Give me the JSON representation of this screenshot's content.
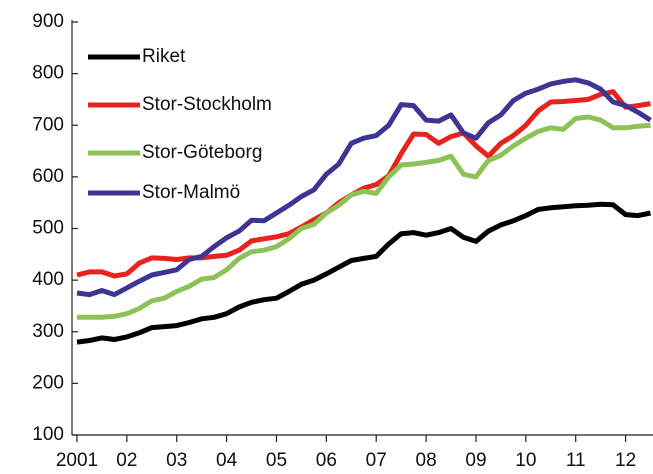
{
  "chart_data": {
    "type": "line",
    "x": [
      2001,
      2001.25,
      2001.5,
      2001.75,
      2002,
      2002.25,
      2002.5,
      2002.75,
      2003,
      2003.25,
      2003.5,
      2003.75,
      2004,
      2004.25,
      2004.5,
      2004.75,
      2005,
      2005.25,
      2005.5,
      2005.75,
      2006,
      2006.25,
      2006.5,
      2006.75,
      2007,
      2007.25,
      2007.5,
      2007.75,
      2008,
      2008.25,
      2008.5,
      2008.75,
      2009,
      2009.25,
      2009.5,
      2009.75,
      2010,
      2010.25,
      2010.5,
      2010.75,
      2011,
      2011.25,
      2011.5,
      2011.75,
      2012,
      2012.25,
      2012.5
    ],
    "series": [
      {
        "name": "Riket",
        "color": "#000000",
        "values": [
          280,
          283,
          288,
          285,
          290,
          298,
          308,
          310,
          312,
          318,
          325,
          328,
          335,
          348,
          357,
          362,
          365,
          378,
          392,
          400,
          412,
          425,
          438,
          442,
          446,
          470,
          490,
          492,
          487,
          492,
          500,
          483,
          475,
          495,
          507,
          515,
          525,
          537,
          540,
          542,
          544,
          545,
          547,
          546,
          527,
          525,
          530
        ]
      },
      {
        "name": "Stor-Stockholm",
        "color": "#e8221d",
        "values": [
          410,
          416,
          416,
          408,
          412,
          433,
          443,
          442,
          440,
          443,
          443,
          446,
          448,
          458,
          476,
          480,
          484,
          490,
          503,
          517,
          530,
          550,
          565,
          578,
          585,
          602,
          645,
          683,
          682,
          665,
          678,
          685,
          660,
          640,
          665,
          680,
          700,
          728,
          745,
          746,
          748,
          750,
          760,
          765,
          735,
          738,
          742
        ]
      },
      {
        "name": "Stor-Göteborg",
        "color": "#8dc356",
        "values": [
          328,
          328,
          328,
          330,
          335,
          345,
          360,
          365,
          378,
          388,
          402,
          405,
          420,
          442,
          455,
          458,
          465,
          480,
          500,
          508,
          530,
          545,
          565,
          572,
          568,
          600,
          623,
          625,
          628,
          632,
          640,
          605,
          600,
          632,
          642,
          660,
          675,
          688,
          695,
          692,
          713,
          716,
          710,
          695,
          695,
          698,
          700
        ]
      },
      {
        "name": "Stor-Malmö",
        "color": "#3d3592",
        "values": [
          375,
          372,
          380,
          372,
          385,
          398,
          410,
          415,
          420,
          440,
          446,
          465,
          482,
          495,
          516,
          515,
          530,
          545,
          562,
          575,
          605,
          625,
          665,
          675,
          680,
          700,
          740,
          738,
          710,
          708,
          720,
          685,
          675,
          705,
          720,
          748,
          762,
          770,
          780,
          785,
          788,
          782,
          770,
          745,
          738,
          725,
          710
        ]
      }
    ],
    "xlim": [
      2000.9,
      2012.55
    ],
    "xticks": [
      {
        "value": 2001,
        "label": "2001"
      },
      {
        "value": 2002,
        "label": "02"
      },
      {
        "value": 2003,
        "label": "03"
      },
      {
        "value": 2004,
        "label": "04"
      },
      {
        "value": 2005,
        "label": "05"
      },
      {
        "value": 2006,
        "label": "06"
      },
      {
        "value": 2007,
        "label": "07"
      },
      {
        "value": 2008,
        "label": "08"
      },
      {
        "value": 2009,
        "label": "09"
      },
      {
        "value": 2010,
        "label": "10"
      },
      {
        "value": 2011,
        "label": "11"
      },
      {
        "value": 2012,
        "label": "12"
      }
    ],
    "ylim": [
      100,
      900
    ],
    "yticks": [
      100,
      200,
      300,
      400,
      500,
      600,
      700,
      800,
      900
    ],
    "legend": "upper-left"
  }
}
